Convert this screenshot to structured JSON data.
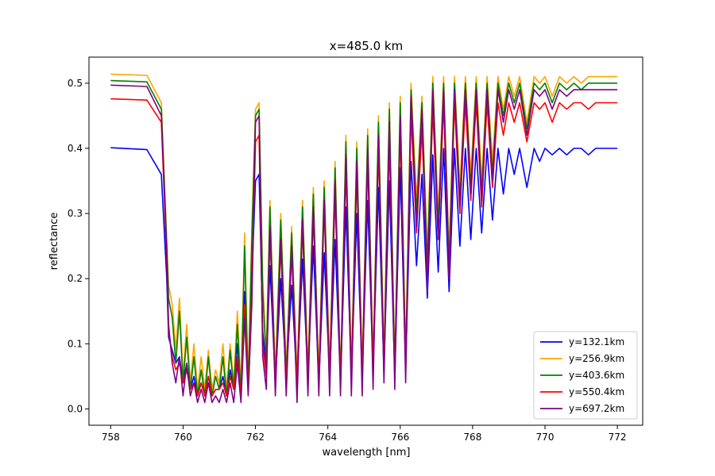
{
  "chart_data": {
    "type": "line",
    "title": "x=485.0 km",
    "xlabel": "wavelength [nm]",
    "ylabel": "reflectance",
    "xlim": [
      757.4,
      772.7
    ],
    "ylim": [
      -0.025,
      0.54
    ],
    "xticks": [
      758,
      760,
      762,
      764,
      766,
      768,
      770,
      772
    ],
    "yticks": [
      0.0,
      0.1,
      0.2,
      0.3,
      0.4,
      0.5
    ],
    "grid": false,
    "legend_position": "lower-right",
    "x": [
      758.0,
      759.0,
      759.4,
      759.55,
      759.6,
      759.7,
      759.8,
      759.9,
      760.0,
      760.1,
      760.2,
      760.3,
      760.4,
      760.5,
      760.6,
      760.7,
      760.8,
      760.9,
      761.0,
      761.1,
      761.2,
      761.3,
      761.4,
      761.5,
      761.6,
      761.7,
      761.8,
      761.9,
      762.0,
      762.1,
      762.2,
      762.3,
      762.4,
      762.55,
      762.7,
      762.85,
      763.0,
      763.15,
      763.3,
      763.45,
      763.6,
      763.75,
      763.9,
      764.05,
      764.2,
      764.35,
      764.5,
      764.65,
      764.8,
      764.95,
      765.1,
      765.25,
      765.4,
      765.55,
      765.7,
      765.85,
      766.0,
      766.15,
      766.3,
      766.45,
      766.6,
      766.75,
      766.9,
      767.05,
      767.2,
      767.35,
      767.5,
      767.65,
      767.8,
      767.95,
      768.1,
      768.25,
      768.4,
      768.55,
      768.7,
      768.85,
      769.0,
      769.15,
      769.3,
      769.5,
      769.7,
      769.85,
      770.0,
      770.2,
      770.4,
      770.6,
      770.8,
      771.0,
      771.2,
      771.4,
      771.6,
      771.8,
      772.0
    ],
    "series": [
      {
        "name": "y=132.1km",
        "color": "#0000ff",
        "values": [
          0.401,
          0.398,
          0.36,
          0.2,
          0.11,
          0.09,
          0.07,
          0.08,
          0.04,
          0.07,
          0.03,
          0.05,
          0.02,
          0.04,
          0.02,
          0.05,
          0.02,
          0.03,
          0.03,
          0.05,
          0.02,
          0.06,
          0.03,
          0.1,
          0.02,
          0.18,
          0.03,
          0.2,
          0.35,
          0.36,
          0.12,
          0.06,
          0.22,
          0.04,
          0.2,
          0.05,
          0.19,
          0.04,
          0.23,
          0.05,
          0.25,
          0.04,
          0.24,
          0.05,
          0.26,
          0.04,
          0.31,
          0.05,
          0.3,
          0.05,
          0.32,
          0.06,
          0.34,
          0.06,
          0.35,
          0.05,
          0.37,
          0.06,
          0.38,
          0.22,
          0.36,
          0.17,
          0.39,
          0.21,
          0.4,
          0.18,
          0.4,
          0.25,
          0.4,
          0.26,
          0.4,
          0.27,
          0.4,
          0.29,
          0.4,
          0.33,
          0.4,
          0.36,
          0.4,
          0.34,
          0.4,
          0.38,
          0.4,
          0.39,
          0.4,
          0.39,
          0.4,
          0.4,
          0.39,
          0.4,
          0.4,
          0.4,
          0.4
        ]
      },
      {
        "name": "y=256.9km",
        "color": "#ffa500",
        "values": [
          0.514,
          0.512,
          0.47,
          0.26,
          0.19,
          0.16,
          0.09,
          0.17,
          0.05,
          0.13,
          0.04,
          0.1,
          0.03,
          0.08,
          0.03,
          0.09,
          0.03,
          0.06,
          0.04,
          0.1,
          0.03,
          0.1,
          0.04,
          0.15,
          0.03,
          0.27,
          0.04,
          0.28,
          0.46,
          0.47,
          0.2,
          0.08,
          0.32,
          0.05,
          0.3,
          0.06,
          0.28,
          0.05,
          0.32,
          0.06,
          0.34,
          0.05,
          0.35,
          0.06,
          0.38,
          0.05,
          0.42,
          0.06,
          0.41,
          0.06,
          0.43,
          0.07,
          0.45,
          0.08,
          0.47,
          0.07,
          0.48,
          0.08,
          0.5,
          0.32,
          0.48,
          0.24,
          0.51,
          0.3,
          0.51,
          0.24,
          0.51,
          0.34,
          0.51,
          0.36,
          0.51,
          0.35,
          0.51,
          0.38,
          0.51,
          0.46,
          0.51,
          0.48,
          0.51,
          0.44,
          0.51,
          0.5,
          0.51,
          0.48,
          0.51,
          0.5,
          0.51,
          0.5,
          0.51,
          0.51,
          0.51,
          0.51,
          0.51
        ]
      },
      {
        "name": "y=403.6km",
        "color": "#008000",
        "values": [
          0.504,
          0.502,
          0.46,
          0.25,
          0.17,
          0.14,
          0.07,
          0.15,
          0.04,
          0.11,
          0.03,
          0.08,
          0.02,
          0.06,
          0.02,
          0.08,
          0.02,
          0.05,
          0.03,
          0.08,
          0.02,
          0.09,
          0.03,
          0.13,
          0.02,
          0.25,
          0.03,
          0.26,
          0.45,
          0.46,
          0.18,
          0.07,
          0.31,
          0.04,
          0.29,
          0.05,
          0.27,
          0.04,
          0.31,
          0.05,
          0.33,
          0.04,
          0.34,
          0.05,
          0.37,
          0.04,
          0.41,
          0.05,
          0.4,
          0.05,
          0.42,
          0.06,
          0.44,
          0.07,
          0.46,
          0.06,
          0.47,
          0.07,
          0.49,
          0.3,
          0.47,
          0.22,
          0.5,
          0.28,
          0.5,
          0.22,
          0.5,
          0.32,
          0.5,
          0.34,
          0.5,
          0.33,
          0.5,
          0.36,
          0.5,
          0.45,
          0.5,
          0.47,
          0.5,
          0.43,
          0.5,
          0.49,
          0.5,
          0.47,
          0.5,
          0.49,
          0.5,
          0.49,
          0.5,
          0.5,
          0.5,
          0.5,
          0.5
        ]
      },
      {
        "name": "y=550.4km",
        "color": "#ff0000",
        "values": [
          0.476,
          0.474,
          0.44,
          0.23,
          0.12,
          0.08,
          0.06,
          0.07,
          0.04,
          0.06,
          0.03,
          0.04,
          0.02,
          0.04,
          0.02,
          0.05,
          0.02,
          0.03,
          0.03,
          0.04,
          0.02,
          0.05,
          0.03,
          0.08,
          0.02,
          0.16,
          0.03,
          0.18,
          0.41,
          0.42,
          0.1,
          0.05,
          0.27,
          0.04,
          0.25,
          0.04,
          0.24,
          0.04,
          0.28,
          0.04,
          0.3,
          0.04,
          0.31,
          0.05,
          0.33,
          0.04,
          0.37,
          0.05,
          0.36,
          0.05,
          0.38,
          0.06,
          0.4,
          0.06,
          0.41,
          0.05,
          0.43,
          0.06,
          0.45,
          0.27,
          0.43,
          0.2,
          0.46,
          0.26,
          0.47,
          0.2,
          0.47,
          0.3,
          0.47,
          0.32,
          0.47,
          0.31,
          0.47,
          0.34,
          0.47,
          0.42,
          0.47,
          0.44,
          0.47,
          0.41,
          0.47,
          0.46,
          0.47,
          0.44,
          0.47,
          0.46,
          0.47,
          0.47,
          0.46,
          0.47,
          0.47,
          0.47,
          0.47
        ]
      },
      {
        "name": "y=697.2km",
        "color": "#800080",
        "values": [
          0.497,
          0.495,
          0.45,
          0.24,
          0.13,
          0.07,
          0.04,
          0.08,
          0.02,
          0.07,
          0.02,
          0.04,
          0.01,
          0.03,
          0.01,
          0.04,
          0.01,
          0.02,
          0.01,
          0.03,
          0.01,
          0.04,
          0.01,
          0.07,
          0.01,
          0.14,
          0.02,
          0.16,
          0.44,
          0.45,
          0.08,
          0.03,
          0.28,
          0.02,
          0.26,
          0.02,
          0.25,
          0.01,
          0.29,
          0.02,
          0.31,
          0.02,
          0.32,
          0.02,
          0.35,
          0.02,
          0.39,
          0.02,
          0.38,
          0.02,
          0.4,
          0.03,
          0.42,
          0.04,
          0.44,
          0.03,
          0.45,
          0.04,
          0.48,
          0.28,
          0.46,
          0.18,
          0.49,
          0.26,
          0.49,
          0.2,
          0.49,
          0.31,
          0.49,
          0.33,
          0.49,
          0.32,
          0.49,
          0.35,
          0.49,
          0.44,
          0.49,
          0.46,
          0.49,
          0.42,
          0.49,
          0.48,
          0.49,
          0.46,
          0.49,
          0.48,
          0.49,
          0.49,
          0.49,
          0.49,
          0.49,
          0.49,
          0.49
        ]
      }
    ]
  }
}
